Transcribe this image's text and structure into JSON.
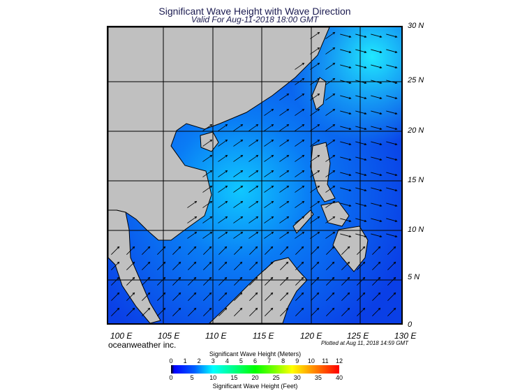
{
  "title": "Significant Wave Height with Wave Direction",
  "subtitle": "Valid For Aug-11-2018 18:00 GMT",
  "lat_labels": [
    "30 N",
    "25 N",
    "20 N",
    "15 N",
    "10 N",
    "5 N",
    "0"
  ],
  "lon_labels": [
    "100 E",
    "105 E",
    "110 E",
    "115 E",
    "120 E",
    "125 E",
    "130 E"
  ],
  "brand": "oceanweather inc.",
  "plotted": "Plotted at Aug 11, 2018 14:59 GMT",
  "legend": {
    "meters_title": "Significant Wave Height (Meters)",
    "meters_ticks": [
      "0",
      "1",
      "2",
      "3",
      "4",
      "5",
      "6",
      "7",
      "8",
      "9",
      "10",
      "11",
      "12"
    ],
    "feet_ticks": [
      "0",
      "5",
      "10",
      "15",
      "20",
      "25",
      "30",
      "35",
      "40"
    ],
    "feet_title": "Significant Wave Height (Feet)"
  },
  "colors": {
    "land": "#c0c0c0",
    "ocean": "#0a4ff0",
    "grid": "#000000"
  }
}
